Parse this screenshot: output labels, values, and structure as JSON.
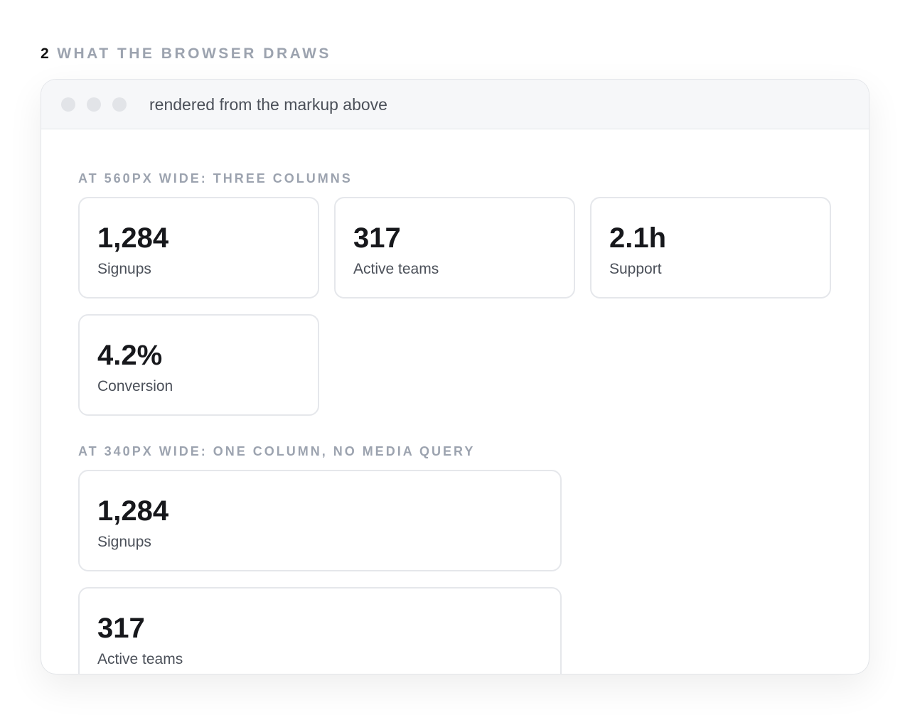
{
  "section": {
    "number": "2",
    "title": "WHAT THE BROWSER DRAWS"
  },
  "window": {
    "caption": "rendered from the markup above"
  },
  "groups": [
    {
      "label": "AT 560PX WIDE: THREE COLUMNS",
      "layout": "three-columns",
      "cards": [
        {
          "value": "1,284",
          "label": "Signups"
        },
        {
          "value": "317",
          "label": "Active teams"
        },
        {
          "value": "2.1h",
          "label": "Support"
        },
        {
          "value": "4.2%",
          "label": "Conversion"
        }
      ]
    },
    {
      "label": "AT 340PX WIDE: ONE COLUMN, NO MEDIA QUERY",
      "layout": "one-column",
      "cards": [
        {
          "value": "1,284",
          "label": "Signups"
        },
        {
          "value": "317",
          "label": "Active teams"
        }
      ]
    }
  ]
}
